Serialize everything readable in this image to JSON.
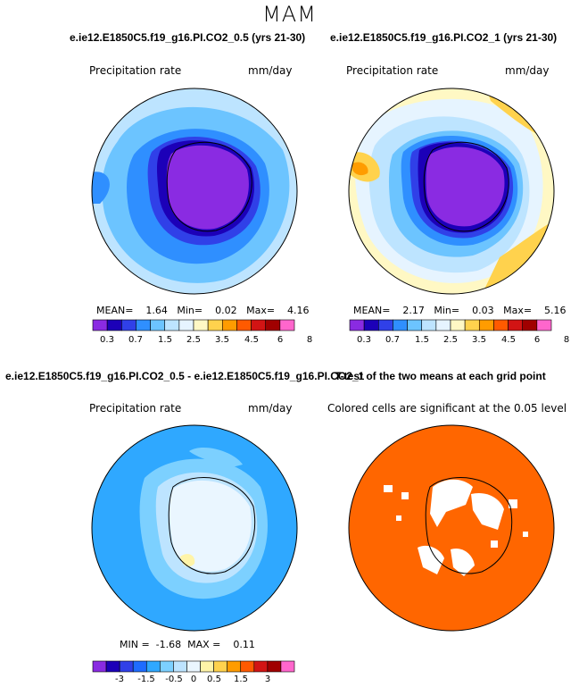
{
  "season_title": "MAM",
  "panel1": {
    "title": "e.ie12.E1850C5.f19_g16.PI.CO2_0.5 (yrs 21-30)",
    "field": "Precipitation rate",
    "units": "mm/day",
    "stats": "MEAN=    1.64   Min=    0.02   Max=    4.16",
    "colorbar_labels": [
      "0.3",
      "0.7",
      "1.5",
      "2.5",
      "3.5",
      "4.5",
      "6",
      "8"
    ]
  },
  "panel2": {
    "title": "e.ie12.E1850C5.f19_g16.PI.CO2_1 (yrs 21-30)",
    "field": "Precipitation rate",
    "units": "mm/day",
    "stats": "MEAN=    2.17   Min=    0.03   Max=    5.16",
    "colorbar_labels": [
      "0.3",
      "0.7",
      "1.5",
      "2.5",
      "3.5",
      "4.5",
      "6",
      "8"
    ]
  },
  "panel3": {
    "title": "e.ie12.E1850C5.f19_g16.PI.CO2_0.5 - e.ie12.E1850C5.f19_g16.PI.CO2_1",
    "field": "Precipitation rate",
    "units": "mm/day",
    "stats": "MIN =  -1.68  MAX =    0.11",
    "colorbar_labels": [
      "-3",
      "-1.5",
      "-0.5",
      "0",
      "0.5",
      "1.5",
      "3"
    ]
  },
  "panel4": {
    "title": "T-test of the two means at each grid point",
    "caption": "Colored cells are significant at the 0.05 level"
  },
  "colors": {
    "precip_scale": [
      "#8a2be2",
      "#1c00b8",
      "#3040e8",
      "#2f8fff",
      "#6cc4ff",
      "#bde4ff",
      "#e6f4ff",
      "#fff8c4",
      "#ffd24d",
      "#ff9c00",
      "#ff5a00",
      "#d21414",
      "#a00000",
      "#ff66cc"
    ],
    "diff_scale": [
      "#8a2be2",
      "#1c00b8",
      "#3040e8",
      "#1e6cff",
      "#2fa8ff",
      "#7cd0ff",
      "#bde4ff",
      "#eaf6ff",
      "#fff4a8",
      "#ffd24d",
      "#ff9c00",
      "#ff5a00",
      "#d21414",
      "#a00000",
      "#ff66cc"
    ],
    "significant": "#ff6600"
  }
}
